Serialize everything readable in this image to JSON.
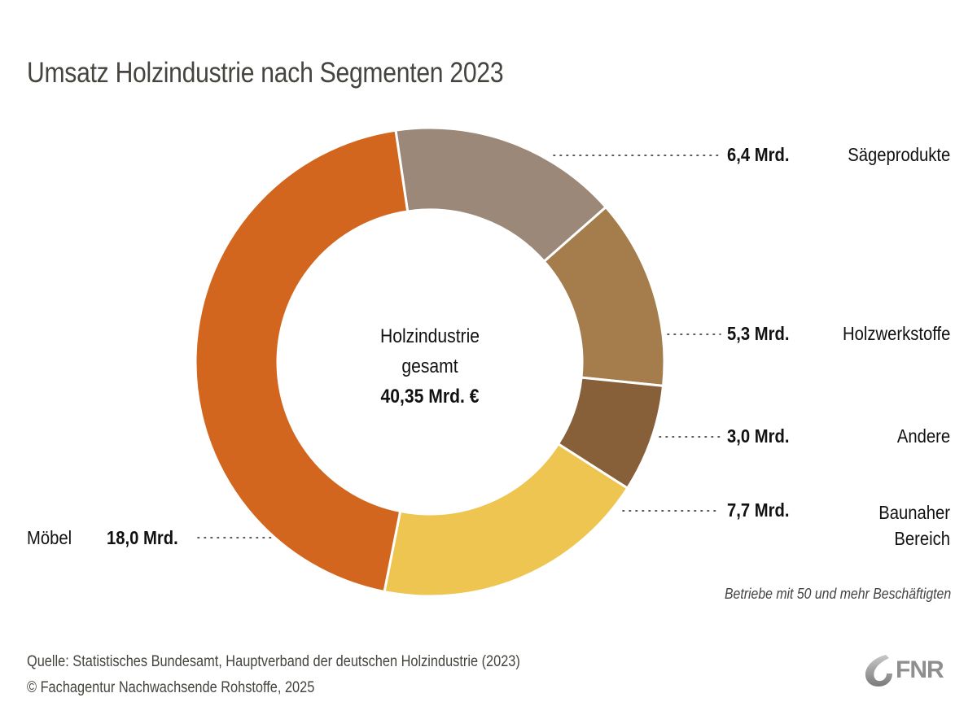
{
  "title": "Umsatz Holzindustrie nach Segmenten 2023",
  "center": {
    "line1": "Holzindustrie",
    "line2": "gesamt",
    "total": "40,35 Mrd. €"
  },
  "note": "Betriebe mit 50 und mehr Beschäftigten",
  "footer": {
    "source": "Quelle: Statistisches Bundesamt, Hauptverband der deutschen Holzindustrie (2023)",
    "copyright": "© Fachagentur Nachwachsende Rohstoffe, 2025"
  },
  "logo": {
    "text": "FNR",
    "icon": "fnr-swirl-icon"
  },
  "chart_data": {
    "type": "pie",
    "variant": "donut",
    "title": "Umsatz Holzindustrie nach Segmenten 2023",
    "unit": "Mrd. €",
    "total": 40.35,
    "total_label": "40,35 Mrd. €",
    "start_angle_deg": -8.4,
    "direction": "clockwise",
    "slices": [
      {
        "name": "Sägeprodukte",
        "value": 6.4,
        "value_label": "6,4 Mrd.",
        "color": "#9b8878"
      },
      {
        "name": "Holzwerkstoffe",
        "value": 5.3,
        "value_label": "5,3 Mrd.",
        "color": "#a57d4d"
      },
      {
        "name": "Andere",
        "value": 3.0,
        "value_label": "3,0 Mrd.",
        "color": "#87603a"
      },
      {
        "name": "Baunaher Bereich",
        "value": 7.7,
        "value_label": "7,7 Mrd.",
        "color": "#edc550"
      },
      {
        "name": "Möbel",
        "value": 18.0,
        "value_label": "18,0 Mrd.",
        "color": "#d2661e"
      }
    ]
  }
}
